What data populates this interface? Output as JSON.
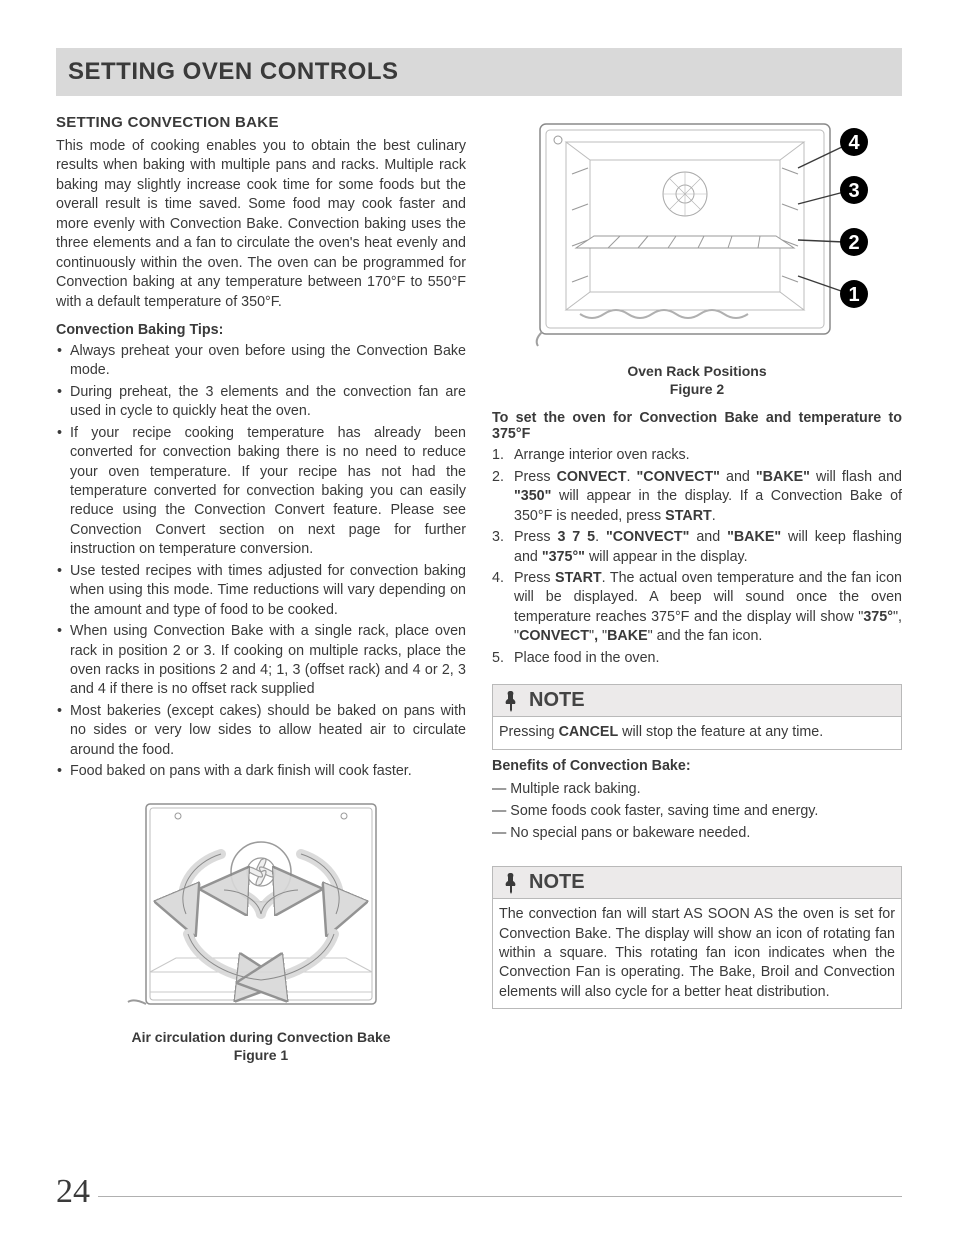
{
  "page": {
    "number": "24",
    "title": "SETTING OVEN CONTROLS"
  },
  "section": {
    "heading": "SETTING CONVECTION BAKE",
    "intro": "This mode of cooking enables you to obtain the best culinary results when baking with multiple pans and racks. Multiple rack baking may slightly increase cook time for some foods but the overall result is time saved. Some food may cook faster and more evenly with Convection Bake. Convection baking uses the three elements and a fan to circulate the oven's heat evenly and continuously within the oven. The oven can be programmed for Convection baking at any temperature between 170°F to 550°F with a default temperature of 350°F.",
    "tips_heading": "Convection Baking Tips:",
    "tips": [
      "Always preheat your oven before using the Convection Bake mode.",
      "During preheat, the 3 elements and the convection fan are used in cycle to quickly heat the oven.",
      "If your recipe cooking temperature has already been converted for convection baking there is no need to reduce your oven temperature. If your recipe has not had the temperature converted for convection baking you can easily reduce using the Convection Convert feature. Please see Convection Convert section on next page for further instruction on temperature conversion.",
      "Use tested recipes with times adjusted for convection baking when using this mode. Time reductions will vary depending on the amount and type of food to be cooked.",
      "When using Convection Bake with a single rack, place oven rack in position 2 or 3. If cooking on multiple racks, place the oven racks in positions 2 and 4; 1, 3 (offset rack) and 4 or 2, 3 and 4 if there is no offset rack supplied",
      "Most bakeries (except cakes) should be baked on pans with no sides or very low sides to allow heated air to circulate around the food.",
      "Food baked on pans with a dark finish will cook faster."
    ],
    "figure1_caption_line1": "Air circulation during Convection Bake",
    "figure1_caption_line2": "Figure 1",
    "figure2_caption_line1": "Oven Rack Positions",
    "figure2_caption_line2": "Figure 2",
    "instructions_heading": "To set the oven for Convection Bake and temperature to 375°F",
    "steps_html": [
      "Arrange interior oven racks.",
      "Press <span class=\"b\">CONVECT</span>. <span class=\"b\">\"CONVECT\"</span> and <span class=\"b\">\"BAKE\"</span> will flash and <span class=\"b\">\"350\"</span> will appear in the display. If a Convection Bake of 350°F is needed, press <span class=\"b\">START</span>.",
      "Press <span class=\"b\">3 7 5</span>. <span class=\"b\">\"CONVECT\"</span> and <span class=\"b\">\"BAKE\"</span> will keep flashing and <span class=\"b\">\"375°\"</span> will appear in the display.",
      "Press <span class=\"b\">START</span>. The actual oven temperature and the fan icon will be displayed. A beep will sound once the oven temperature reaches 375°F and the display will show \"<span class=\"b\">375°</span>\", \"<span class=\"b\">CONVECT</span>\"<span class=\"b\">,</span> \"<span class=\"b\">BAKE</span>\" and the fan icon.",
      "Place food in the oven."
    ],
    "note1_title": "NOTE",
    "note1_body_html": "Pressing <span class=\"b\">CANCEL</span> will stop the feature at any time.",
    "benefits_heading": "Benefits of Convection Bake:",
    "benefits": [
      "Multiple rack baking.",
      "Some foods cook faster, saving time and energy.",
      "No special pans or bakeware needed."
    ],
    "note2_title": "NOTE",
    "note2_body": "The convection fan will start AS SOON AS the oven is set for Convection Bake. The display will show an icon of rotating fan within a square. This rotating fan icon indicates when the Convection Fan is operating. The Bake, Broil and Convection elements will also cycle for a better heat distribution."
  },
  "figure2": {
    "rack_labels": [
      "4",
      "3",
      "2",
      "1"
    ],
    "badge_bg": "#000000",
    "badge_text": "#ffffff"
  },
  "colors": {
    "page_bg": "#ffffff",
    "header_bg": "#d9d9d9",
    "note_head_bg": "#eceaea",
    "rule": "#b9b9b9",
    "text": "#3a3a3a"
  },
  "typography": {
    "title_size_pt": 18,
    "body_size_pt": 11,
    "caption_weight": "700"
  }
}
